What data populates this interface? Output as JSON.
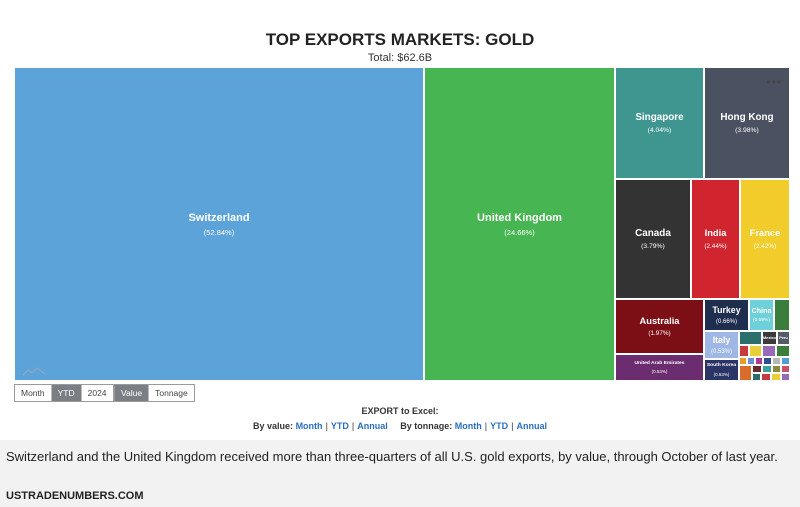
{
  "title": "TOP EXPORTS MARKETS: GOLD",
  "subtitle": "Total: $62.6B",
  "more_icon": "more-dots-icon",
  "period_buttons": [
    {
      "label": "Month",
      "active": false
    },
    {
      "label": "YTD",
      "active": true
    },
    {
      "label": "2024",
      "active": false
    }
  ],
  "measure_buttons": [
    {
      "label": "Value",
      "active": true
    },
    {
      "label": "Tonnage",
      "active": false
    }
  ],
  "export": {
    "title": "EXPORT to Excel:",
    "by_value_label": "By value:",
    "by_tonnage_label": "By tonnage:",
    "links": [
      "Month",
      "YTD",
      "Annual"
    ]
  },
  "caption": "Switzerland and the United Kingdom received more than three-quarters of all U.S. gold exports, by value, through October of last year.",
  "source": "USTRADENUMBERS.COM",
  "chart_data": {
    "type": "treemap",
    "title": "TOP EXPORTS MARKETS: GOLD",
    "subtitle": "Total: $62.6B",
    "total": "$62.6B",
    "series": [
      {
        "name": "Switzerland",
        "label": "Switzerland",
        "share_text": "(52.84%)",
        "value": 52.84,
        "color": "#5ba3d9"
      },
      {
        "name": "United Kingdom",
        "label": "United Kingdom",
        "share_text": "(24.66%)",
        "value": 24.66,
        "color": "#47b551"
      },
      {
        "name": "Singapore",
        "label": "Singapore",
        "share_text": "(4.04%)",
        "value": 4.04,
        "color": "#3f9690"
      },
      {
        "name": "Hong Kong",
        "label": "Hong Kong",
        "share_text": "(3.98%)",
        "value": 3.98,
        "color": "#4a5160"
      },
      {
        "name": "Canada",
        "label": "Canada",
        "share_text": "(3.79%)",
        "value": 3.79,
        "color": "#333333"
      },
      {
        "name": "India",
        "label": "India",
        "share_text": "(2.44%)",
        "value": 2.44,
        "color": "#d0252f"
      },
      {
        "name": "France",
        "label": "France",
        "share_text": "(2.42%)",
        "value": 2.42,
        "color": "#f1cc2a"
      },
      {
        "name": "Australia",
        "label": "Australia",
        "share_text": "(1.97%)",
        "value": 1.97,
        "color": "#7c0f15"
      },
      {
        "name": "Turkey",
        "label": "Turkey",
        "share_text": "(0.66%)",
        "value": 0.66,
        "color": "#1f2d4f"
      },
      {
        "name": "China",
        "label": "China",
        "share_text": "(0.59%)",
        "value": 0.59,
        "color": "#6ed0d8"
      },
      {
        "name": "Italy",
        "label": "Italy",
        "share_text": "(0.53%)",
        "value": 0.53,
        "color": "#9fb7e5"
      },
      {
        "name": "United Arab Emirates",
        "label": "United Arab Emirates",
        "share_text": "(0.53%)",
        "value": 0.53,
        "color": "#6b2d6f"
      },
      {
        "name": "South Korea",
        "label": "South Korea",
        "share_text": "(0.53%)",
        "value": 0.53,
        "color": "#2a3566"
      },
      {
        "name": "Mexico",
        "label": "Mexico",
        "share_text": "",
        "value": 0.3,
        "color": "#3a3a3a"
      },
      {
        "name": "Peru",
        "label": "Peru",
        "share_text": "",
        "value": 0.3,
        "color": "#555b64"
      }
    ],
    "small_tile_colors": [
      "#2a6f6b",
      "#c73a3f",
      "#e7cf3a",
      "#9a6ab8",
      "#3b7e3b",
      "#e79b2a",
      "#6a8fd6",
      "#b23a8e",
      "#2f4f8f",
      "#b8b8b8",
      "#4f9fd9",
      "#d96c2a",
      "#6a2a2a",
      "#3aa0a0",
      "#8a8a3a",
      "#c94f6a"
    ]
  }
}
